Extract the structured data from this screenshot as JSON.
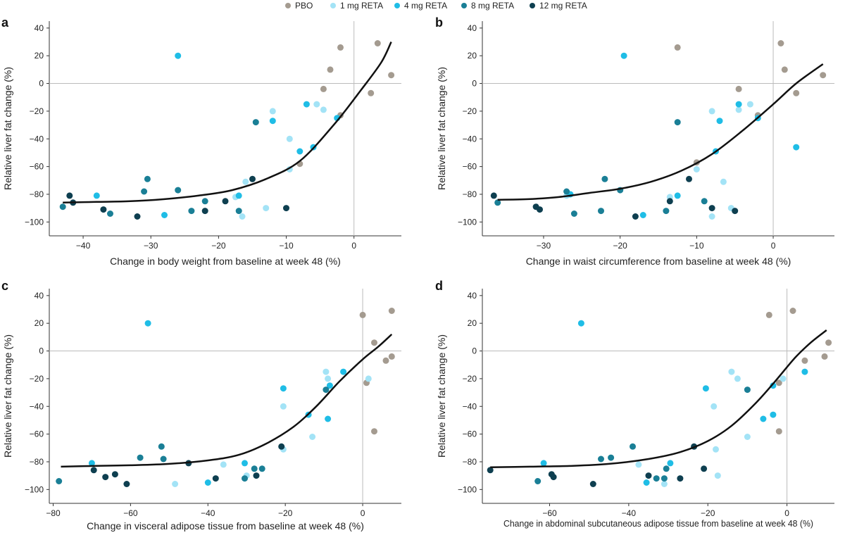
{
  "legend": [
    {
      "name": "PBO",
      "color": "#a49b90"
    },
    {
      "name": "1 mg RETA",
      "color": "#a3e3f6"
    },
    {
      "name": "4 mg RETA",
      "color": "#1fbde6"
    },
    {
      "name": "8 mg RETA",
      "color": "#1a7f96"
    },
    {
      "name": "12 mg RETA",
      "color": "#0e3f50"
    }
  ],
  "chart_data": [
    {
      "type": "scatter",
      "panel_label": "a",
      "xlabel": "Change in body weight from baseline at week 48 (%)",
      "ylabel": "Relative liver fat change (%)",
      "xlim": [
        -45,
        7
      ],
      "ylim": [
        -110,
        45
      ],
      "xticks": [
        -40,
        -30,
        -20,
        -10,
        0
      ],
      "yticks": [
        40,
        20,
        0,
        -20,
        -40,
        -60,
        -80,
        -100
      ],
      "fit": [
        [
          -43,
          -86
        ],
        [
          -38,
          -85.5
        ],
        [
          -33,
          -85
        ],
        [
          -28,
          -83.5
        ],
        [
          -23,
          -81
        ],
        [
          -18,
          -77
        ],
        [
          -13,
          -69
        ],
        [
          -8,
          -56
        ],
        [
          -3,
          -30
        ],
        [
          1,
          -5
        ],
        [
          4,
          15
        ],
        [
          5.5,
          30
        ]
      ],
      "series": [
        {
          "name": "PBO",
          "points": [
            [
              3.5,
              29
            ],
            [
              -2,
              26
            ],
            [
              -3.5,
              10
            ],
            [
              -4.5,
              -4
            ],
            [
              2.5,
              -7
            ],
            [
              5.5,
              6
            ],
            [
              -2,
              -23
            ],
            [
              -8,
              -58
            ]
          ]
        },
        {
          "name": "1 mg RETA",
          "points": [
            [
              -12,
              -20
            ],
            [
              -5.5,
              -15
            ],
            [
              -4.5,
              -19
            ],
            [
              -9.5,
              -40
            ],
            [
              -9.5,
              -62
            ],
            [
              -16,
              -71
            ],
            [
              -17.5,
              -82
            ],
            [
              -16.5,
              -96
            ],
            [
              -13,
              -90
            ]
          ]
        },
        {
          "name": "4 mg RETA",
          "points": [
            [
              -26,
              20
            ],
            [
              -7,
              -15
            ],
            [
              -12,
              -27
            ],
            [
              -2.5,
              -25
            ],
            [
              -8,
              -49
            ],
            [
              -6,
              -46
            ],
            [
              -17,
              -81
            ],
            [
              -28,
              -95
            ],
            [
              -38,
              -81
            ]
          ]
        },
        {
          "name": "8 mg RETA",
          "points": [
            [
              -14.5,
              -28
            ],
            [
              -26,
              -77
            ],
            [
              -30.5,
              -69
            ],
            [
              -31,
              -78
            ],
            [
              -36,
              -94
            ],
            [
              -24,
              -92
            ],
            [
              -22,
              -85
            ],
            [
              -17,
              -92
            ],
            [
              -43,
              -89
            ]
          ]
        },
        {
          "name": "12 mg RETA",
          "points": [
            [
              -15,
              -69
            ],
            [
              -19,
              -85
            ],
            [
              -22,
              -92
            ],
            [
              -10,
              -90
            ],
            [
              -32,
              -96
            ],
            [
              -37,
              -91
            ],
            [
              -41.5,
              -86
            ],
            [
              -42,
              -81
            ]
          ]
        }
      ]
    },
    {
      "type": "scatter",
      "panel_label": "b",
      "xlabel": "Change in waist circumference from baseline at week 48 (%)",
      "ylabel": "Relative liver fat change (%)",
      "xlim": [
        -38,
        8
      ],
      "ylim": [
        -110,
        45
      ],
      "xticks": [
        -30,
        -20,
        -10,
        0
      ],
      "yticks": [
        40,
        20,
        0,
        -20,
        -40,
        -60,
        -80,
        -100
      ],
      "fit": [
        [
          -36,
          -84
        ],
        [
          -32,
          -83.5
        ],
        [
          -28,
          -82
        ],
        [
          -24,
          -79
        ],
        [
          -20,
          -76
        ],
        [
          -16,
          -71
        ],
        [
          -12,
          -63
        ],
        [
          -8,
          -51
        ],
        [
          -4,
          -34
        ],
        [
          0,
          -15
        ],
        [
          3,
          0
        ],
        [
          6.5,
          14
        ]
      ],
      "series": [
        {
          "name": "PBO",
          "points": [
            [
              1,
              29
            ],
            [
              -12.5,
              26
            ],
            [
              1.5,
              10
            ],
            [
              -4.5,
              -4
            ],
            [
              3,
              -7
            ],
            [
              6.5,
              6
            ],
            [
              -2,
              -23
            ],
            [
              -10,
              -57
            ]
          ]
        },
        {
          "name": "1 mg RETA",
          "points": [
            [
              -8,
              -20
            ],
            [
              -3,
              -15
            ],
            [
              -4.5,
              -19
            ],
            [
              -10,
              -62
            ],
            [
              -6.5,
              -71
            ],
            [
              -13.5,
              -82
            ],
            [
              -5.5,
              -90
            ],
            [
              -8,
              -96
            ],
            [
              -27,
              -81
            ]
          ]
        },
        {
          "name": "4 mg RETA",
          "points": [
            [
              -19.5,
              20
            ],
            [
              -4.5,
              -15
            ],
            [
              -7,
              -27
            ],
            [
              -2,
              -25
            ],
            [
              -7.5,
              -49
            ],
            [
              3,
              -46
            ],
            [
              -12.5,
              -81
            ],
            [
              -17,
              -95
            ],
            [
              -26.5,
              -80
            ]
          ]
        },
        {
          "name": "8 mg RETA",
          "points": [
            [
              -12.5,
              -28
            ],
            [
              -22,
              -69
            ],
            [
              -20,
              -77
            ],
            [
              -27,
              -78
            ],
            [
              -26,
              -94
            ],
            [
              -22.5,
              -92
            ],
            [
              -9,
              -85
            ],
            [
              -14,
              -92
            ],
            [
              -36,
              -86
            ]
          ]
        },
        {
          "name": "12 mg RETA",
          "points": [
            [
              -11,
              -69
            ],
            [
              -13.5,
              -85
            ],
            [
              -8,
              -90
            ],
            [
              -5,
              -92
            ],
            [
              -18,
              -96
            ],
            [
              -31,
              -89
            ],
            [
              -30.5,
              -91
            ],
            [
              -36.5,
              -81
            ]
          ]
        }
      ]
    },
    {
      "type": "scatter",
      "panel_label": "c",
      "xlabel": "Change in visceral adipose tissue from baseline at week 48 (%)",
      "ylabel": "Relative liver fat change (%)",
      "xlim": [
        -81,
        10
      ],
      "ylim": [
        -110,
        45
      ],
      "xticks": [
        -80,
        -60,
        -40,
        -20,
        0
      ],
      "yticks": [
        40,
        20,
        0,
        -20,
        -40,
        -60,
        -80,
        -100
      ],
      "fit": [
        [
          -78,
          -83.5
        ],
        [
          -70,
          -83
        ],
        [
          -60,
          -82.5
        ],
        [
          -50,
          -81.5
        ],
        [
          -40,
          -79
        ],
        [
          -32,
          -75
        ],
        [
          -25,
          -67
        ],
        [
          -18,
          -55
        ],
        [
          -12,
          -40
        ],
        [
          -6,
          -22
        ],
        [
          0,
          -6
        ],
        [
          4,
          3
        ],
        [
          7.5,
          12
        ]
      ],
      "series": [
        {
          "name": "PBO",
          "points": [
            [
              7.5,
              29
            ],
            [
              0,
              26
            ],
            [
              3,
              6
            ],
            [
              6,
              -7
            ],
            [
              7.5,
              -4
            ],
            [
              1,
              -23
            ],
            [
              3,
              -58
            ]
          ]
        },
        {
          "name": "1 mg RETA",
          "points": [
            [
              -9.5,
              -15
            ],
            [
              -9,
              -20
            ],
            [
              1.5,
              -20
            ],
            [
              -20.5,
              -40
            ],
            [
              -20.5,
              -71
            ],
            [
              -13,
              -62
            ],
            [
              -36,
              -82
            ],
            [
              -48.5,
              -96
            ],
            [
              -30,
              -90
            ]
          ]
        },
        {
          "name": "4 mg RETA",
          "points": [
            [
              -55.5,
              20
            ],
            [
              -5,
              -15
            ],
            [
              -20.5,
              -27
            ],
            [
              -8.5,
              -25
            ],
            [
              -14,
              -46
            ],
            [
              -9,
              -49
            ],
            [
              -30.5,
              -81
            ],
            [
              -40,
              -95
            ],
            [
              -70,
              -81
            ]
          ]
        },
        {
          "name": "8 mg RETA",
          "points": [
            [
              -9.5,
              -28
            ],
            [
              -52,
              -69
            ],
            [
              -57.5,
              -77
            ],
            [
              -51.5,
              -78
            ],
            [
              -30.5,
              -92
            ],
            [
              -28,
              -85
            ],
            [
              -78.5,
              -94
            ],
            [
              -26,
              -85
            ]
          ]
        },
        {
          "name": "12 mg RETA",
          "points": [
            [
              -21,
              -69
            ],
            [
              -27.5,
              -90
            ],
            [
              -38,
              -92
            ],
            [
              -45,
              -81
            ],
            [
              -61,
              -96
            ],
            [
              -64,
              -89
            ],
            [
              -66.5,
              -91
            ],
            [
              -69.5,
              -86
            ]
          ]
        }
      ]
    },
    {
      "type": "scatter",
      "panel_label": "d",
      "xlabel": "Change in abdominal subcutaneous adipose tissue from baseline at week 48 (%)",
      "ylabel": "Relative liver fat change (%)",
      "xlim": [
        -77,
        12
      ],
      "ylim": [
        -110,
        45
      ],
      "xticks": [
        -60,
        -40,
        -20,
        0
      ],
      "yticks": [
        40,
        20,
        0,
        -20,
        -40,
        -60,
        -80,
        -100
      ],
      "fit": [
        [
          -75,
          -84
        ],
        [
          -65,
          -83.5
        ],
        [
          -55,
          -83
        ],
        [
          -45,
          -81.5
        ],
        [
          -35,
          -78
        ],
        [
          -27,
          -73
        ],
        [
          -20,
          -65
        ],
        [
          -14,
          -54
        ],
        [
          -8,
          -38
        ],
        [
          -3,
          -22
        ],
        [
          2,
          -5
        ],
        [
          6,
          6
        ],
        [
          10,
          15
        ]
      ],
      "series": [
        {
          "name": "PBO",
          "points": [
            [
              -4.5,
              26
            ],
            [
              1.5,
              29
            ],
            [
              10.5,
              6
            ],
            [
              4.5,
              -7
            ],
            [
              9.5,
              -4
            ],
            [
              -2,
              -23
            ],
            [
              -2,
              -58
            ]
          ]
        },
        {
          "name": "1 mg RETA",
          "points": [
            [
              -14,
              -15
            ],
            [
              -12.5,
              -20
            ],
            [
              -1,
              -20
            ],
            [
              -18.5,
              -40
            ],
            [
              -10,
              -62
            ],
            [
              -18,
              -71
            ],
            [
              -17.5,
              -90
            ],
            [
              -37.5,
              -82
            ],
            [
              -31,
              -96
            ]
          ]
        },
        {
          "name": "4 mg RETA",
          "points": [
            [
              -52,
              20
            ],
            [
              -20.5,
              -27
            ],
            [
              -3.5,
              -25
            ],
            [
              4.5,
              -15
            ],
            [
              -3.5,
              -46
            ],
            [
              -6,
              -49
            ],
            [
              -29.5,
              -81
            ],
            [
              -35.5,
              -95
            ],
            [
              -61.5,
              -81
            ]
          ]
        },
        {
          "name": "8 mg RETA",
          "points": [
            [
              -10,
              -28
            ],
            [
              -39,
              -69
            ],
            [
              -47,
              -78
            ],
            [
              -44.5,
              -77
            ],
            [
              -33,
              -92
            ],
            [
              -30.5,
              -85
            ],
            [
              -63,
              -94
            ],
            [
              -31,
              -92
            ]
          ]
        },
        {
          "name": "12 mg RETA",
          "points": [
            [
              -23.5,
              -69
            ],
            [
              -21,
              -85
            ],
            [
              -27,
              -92
            ],
            [
              -35,
              -90
            ],
            [
              -49,
              -96
            ],
            [
              -59.5,
              -89
            ],
            [
              -59,
              -91
            ],
            [
              -75,
              -86
            ]
          ]
        }
      ]
    }
  ]
}
